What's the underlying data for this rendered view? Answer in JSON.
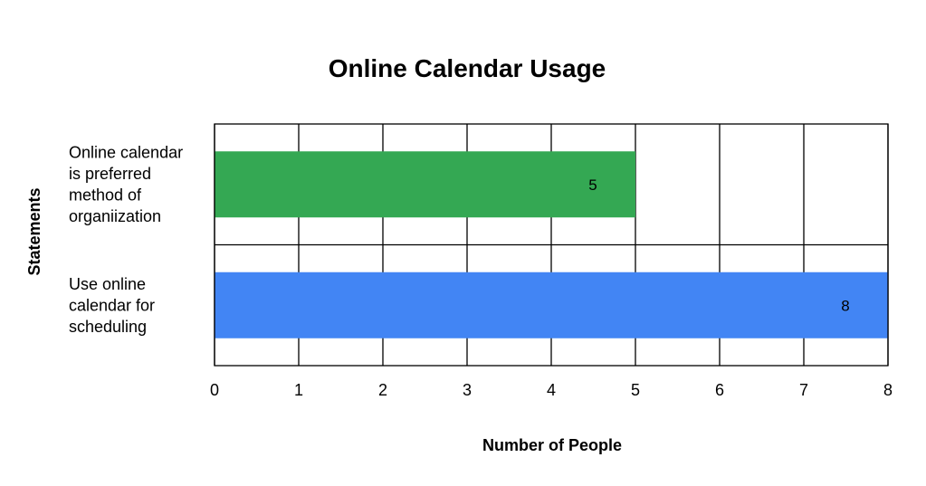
{
  "chart_data": {
    "type": "bar",
    "orientation": "horizontal",
    "title": "Online Calendar Usage",
    "xlabel": "Number of People",
    "ylabel": "Statements",
    "xlim": [
      0,
      8
    ],
    "x_ticks": [
      "0",
      "1",
      "2",
      "3",
      "4",
      "5",
      "6",
      "7",
      "8"
    ],
    "grid": true,
    "categories": [
      [
        "Online calendar",
        "is preferred",
        "method of",
        "organiization"
      ],
      [
        "Use online",
        "calendar for",
        "scheduling"
      ]
    ],
    "values": [
      5,
      8
    ],
    "data_labels": [
      "5",
      "8"
    ],
    "colors": [
      "#34a853",
      "#4285f4"
    ]
  }
}
